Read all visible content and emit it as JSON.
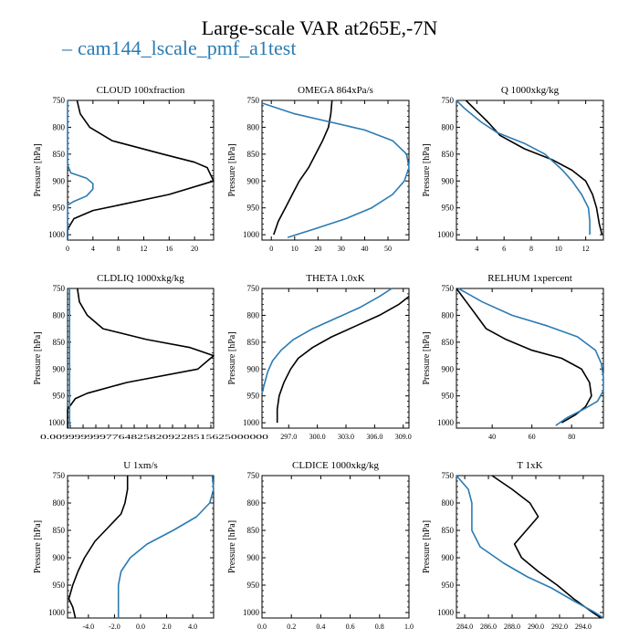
{
  "title": "Large-scale VAR at265E,-7N",
  "legend": {
    "label": "cam144_lscale_pmf_a1test",
    "dash": "–"
  },
  "colors": {
    "obs": "#000000",
    "model": "#2b7bb3"
  },
  "chart_data": [
    {
      "type": "line",
      "title": "CLOUD  100xfraction",
      "ylabel": "Pressure [hPa]",
      "xlim": [
        0,
        23
      ],
      "ylim": [
        1010,
        750
      ],
      "xticks": [
        0,
        4,
        8,
        12,
        16,
        20
      ],
      "xticklabels": [
        "0",
        "4",
        "8",
        "12",
        "16",
        "20"
      ],
      "yticks": [
        750,
        800,
        850,
        900,
        950,
        1000
      ],
      "series": [
        {
          "key": "obs",
          "points": [
            [
              1.5,
              750
            ],
            [
              2,
              775
            ],
            [
              3.5,
              800
            ],
            [
              7,
              825
            ],
            [
              15,
              850
            ],
            [
              20,
              865
            ],
            [
              22,
              875
            ],
            [
              23,
              900
            ],
            [
              16,
              925
            ],
            [
              8,
              945
            ],
            [
              4,
              955
            ],
            [
              1,
              970
            ],
            [
              0,
              990
            ],
            [
              0,
              1010
            ]
          ]
        },
        {
          "key": "model",
          "points": [
            [
              0,
              750
            ],
            [
              0,
              870
            ],
            [
              0.5,
              885
            ],
            [
              3,
              895
            ],
            [
              4,
              905
            ],
            [
              4,
              915
            ],
            [
              3,
              928
            ],
            [
              1,
              938
            ],
            [
              0,
              945
            ],
            [
              0,
              1010
            ]
          ]
        }
      ]
    },
    {
      "type": "line",
      "title": "OMEGA  864xPa/s",
      "ylabel": "Pressure [hPa]",
      "xlim": [
        -4,
        59
      ],
      "ylim": [
        1010,
        750
      ],
      "xticks": [
        0,
        10,
        20,
        30,
        40,
        50
      ],
      "xticklabels": [
        "0",
        "10",
        "20",
        "30",
        "40",
        "50"
      ],
      "yticks": [
        750,
        800,
        850,
        900,
        950,
        1000
      ],
      "series": [
        {
          "key": "obs",
          "points": [
            [
              26,
              750
            ],
            [
              25.5,
              775
            ],
            [
              24.5,
              800
            ],
            [
              22,
              825
            ],
            [
              19,
              850
            ],
            [
              16,
              875
            ],
            [
              12,
              900
            ],
            [
              9,
              925
            ],
            [
              6,
              950
            ],
            [
              3,
              975
            ],
            [
              1,
              1000
            ]
          ]
        },
        {
          "key": "model",
          "points": [
            [
              -4,
              755
            ],
            [
              10,
              775
            ],
            [
              25,
              790
            ],
            [
              40,
              805
            ],
            [
              52,
              825
            ],
            [
              58,
              850
            ],
            [
              59,
              875
            ],
            [
              57,
              900
            ],
            [
              52,
              925
            ],
            [
              43,
              950
            ],
            [
              32,
              970
            ],
            [
              18,
              990
            ],
            [
              7,
              1005
            ]
          ]
        }
      ]
    },
    {
      "type": "line",
      "title": "Q  1000xkg/kg",
      "ylabel": "Pressure [hPa]",
      "xlim": [
        2.5,
        13.3
      ],
      "ylim": [
        1010,
        750
      ],
      "xticks": [
        4,
        6,
        8,
        10,
        12
      ],
      "xticklabels": [
        "4",
        "6",
        "8",
        "10",
        "12"
      ],
      "yticks": [
        750,
        800,
        850,
        900,
        950,
        1000
      ],
      "series": [
        {
          "key": "obs",
          "points": [
            [
              3.2,
              750
            ],
            [
              4.0,
              770
            ],
            [
              4.8,
              790
            ],
            [
              5.7,
              815
            ],
            [
              7.5,
              840
            ],
            [
              9.5,
              860
            ],
            [
              11.0,
              880
            ],
            [
              12.0,
              900
            ],
            [
              12.5,
              925
            ],
            [
              12.8,
              950
            ],
            [
              13.0,
              980
            ],
            [
              13.2,
              1000
            ]
          ]
        },
        {
          "key": "model",
          "points": [
            [
              2.5,
              750
            ],
            [
              3.1,
              765
            ],
            [
              4.3,
              790
            ],
            [
              5.5,
              810
            ],
            [
              7.5,
              830
            ],
            [
              9.0,
              850
            ],
            [
              10.3,
              880
            ],
            [
              11.0,
              900
            ],
            [
              11.7,
              925
            ],
            [
              12.2,
              950
            ],
            [
              12.3,
              975
            ],
            [
              12.3,
              1000
            ]
          ]
        }
      ]
    },
    {
      "type": "line",
      "title": "CLDLIQ  1000xkg/kg",
      "ylabel": "Pressure [hPa]",
      "xlim": [
        0,
        0.037
      ],
      "ylim": [
        1010,
        750
      ],
      "xticklabels": [
        "0.00999999977648258209228515625000000"
      ],
      "yticks": [
        750,
        800,
        850,
        900,
        950,
        1000
      ],
      "series": [
        {
          "key": "obs",
          "points": [
            [
              0.0025,
              750
            ],
            [
              0.003,
              775
            ],
            [
              0.005,
              800
            ],
            [
              0.009,
              825
            ],
            [
              0.02,
              845
            ],
            [
              0.031,
              860
            ],
            [
              0.037,
              875
            ],
            [
              0.033,
              900
            ],
            [
              0.015,
              925
            ],
            [
              0.005,
              945
            ],
            [
              0.002,
              955
            ],
            [
              0,
              975
            ],
            [
              0,
              1010
            ]
          ]
        },
        {
          "key": "model",
          "points": [
            [
              0.0005,
              750
            ],
            [
              0.0005,
              1010
            ]
          ]
        }
      ]
    },
    {
      "type": "line",
      "title": "THETA  1.0xK",
      "ylabel": "Pressure [hPa]",
      "xlim": [
        294.2,
        309.6
      ],
      "ylim": [
        1010,
        750
      ],
      "xticks": [
        297.0,
        300.0,
        303.0,
        306.0,
        309.0
      ],
      "xticklabels": [
        "297.0",
        "300.0",
        "303.0",
        "306.0",
        "309.0"
      ],
      "yticks": [
        750,
        800,
        850,
        900,
        950,
        1000
      ],
      "series": [
        {
          "key": "obs",
          "points": [
            [
              309.6,
              765
            ],
            [
              308.5,
              780
            ],
            [
              306.5,
              800
            ],
            [
              304.0,
              820
            ],
            [
              301.5,
              840
            ],
            [
              299.5,
              860
            ],
            [
              298.0,
              880
            ],
            [
              297.2,
              900
            ],
            [
              296.5,
              925
            ],
            [
              296.0,
              950
            ],
            [
              295.8,
              975
            ],
            [
              295.8,
              1000
            ]
          ]
        },
        {
          "key": "model",
          "points": [
            [
              307.8,
              750
            ],
            [
              306.5,
              765
            ],
            [
              304.5,
              785
            ],
            [
              302.0,
              805
            ],
            [
              299.5,
              825
            ],
            [
              297.5,
              845
            ],
            [
              296.2,
              865
            ],
            [
              295.3,
              885
            ],
            [
              294.8,
              905
            ],
            [
              294.5,
              925
            ],
            [
              294.2,
              945
            ]
          ]
        }
      ]
    },
    {
      "type": "line",
      "title": "RELHUM  1xpercent",
      "ylabel": "Pressure [hPa]",
      "xlim": [
        22,
        96
      ],
      "ylim": [
        1010,
        750
      ],
      "xticks": [
        40,
        60,
        80
      ],
      "xticklabels": [
        "40",
        "60",
        "80"
      ],
      "yticks": [
        750,
        800,
        850,
        900,
        950,
        1000
      ],
      "series": [
        {
          "key": "obs",
          "points": [
            [
              22,
              750
            ],
            [
              27,
              775
            ],
            [
              32,
              800
            ],
            [
              37,
              825
            ],
            [
              47,
              845
            ],
            [
              60,
              865
            ],
            [
              75,
              880
            ],
            [
              85,
              900
            ],
            [
              89,
              925
            ],
            [
              90,
              950
            ],
            [
              87,
              970
            ],
            [
              82,
              985
            ],
            [
              75,
              1000
            ]
          ]
        },
        {
          "key": "model",
          "points": [
            [
              23,
              750
            ],
            [
              35,
              775
            ],
            [
              50,
              800
            ],
            [
              68,
              820
            ],
            [
              83,
              840
            ],
            [
              92,
              865
            ],
            [
              95,
              890
            ],
            [
              96,
              915
            ],
            [
              96,
              940
            ],
            [
              93,
              960
            ],
            [
              86,
              975
            ],
            [
              78,
              990
            ],
            [
              72,
              1005
            ]
          ]
        }
      ]
    },
    {
      "type": "line",
      "title": "U  1xm/s",
      "ylabel": "Pressure [hPa]",
      "xlim": [
        -5.6,
        5.6
      ],
      "ylim": [
        1010,
        750
      ],
      "xticks": [
        -4,
        -2,
        0,
        2,
        4
      ],
      "xticklabels": [
        "-4.0",
        "-2.0",
        "0.0",
        "2.0",
        "4.0"
      ],
      "yticks": [
        750,
        800,
        850,
        900,
        950,
        1000
      ],
      "series": [
        {
          "key": "obs",
          "points": [
            [
              -1.0,
              750
            ],
            [
              -1.0,
              775
            ],
            [
              -1.2,
              800
            ],
            [
              -1.5,
              820
            ],
            [
              -2.5,
              845
            ],
            [
              -3.5,
              870
            ],
            [
              -4.3,
              900
            ],
            [
              -4.8,
              925
            ],
            [
              -5.2,
              950
            ],
            [
              -5.5,
              975
            ],
            [
              -5.2,
              990
            ],
            [
              -5.0,
              1010
            ]
          ]
        },
        {
          "key": "model",
          "points": [
            [
              5.5,
              750
            ],
            [
              5.6,
              775
            ],
            [
              5.3,
              800
            ],
            [
              4.3,
              825
            ],
            [
              2.5,
              850
            ],
            [
              0.5,
              875
            ],
            [
              -0.8,
              900
            ],
            [
              -1.5,
              925
            ],
            [
              -1.7,
              950
            ],
            [
              -1.7,
              1010
            ]
          ]
        }
      ]
    },
    {
      "type": "line",
      "title": "CLDICE  1000xkg/kg",
      "ylabel": "Pressure [hPa]",
      "xlim": [
        0,
        1
      ],
      "ylim": [
        1010,
        750
      ],
      "xticks": [
        0,
        0.2,
        0.4,
        0.6,
        0.8,
        1.0
      ],
      "xticklabels": [
        "0.0",
        "0.2",
        "0.4",
        "0.6",
        "0.8",
        "1.0"
      ],
      "yticks": [
        750,
        800,
        850,
        900,
        950,
        1000
      ],
      "series": []
    },
    {
      "type": "line",
      "title": "T  1xK",
      "ylabel": "Pressure [hPa]",
      "xlim": [
        283.3,
        295.7
      ],
      "ylim": [
        1010,
        750
      ],
      "xticks": [
        284.0,
        286.0,
        288.0,
        290.0,
        292.0,
        294.0
      ],
      "xticklabels": [
        "284.0",
        "286.0",
        "288.0",
        "290.0",
        "292.0",
        "294.0"
      ],
      "yticks": [
        750,
        800,
        850,
        900,
        950,
        1000
      ],
      "series": [
        {
          "key": "obs",
          "points": [
            [
              286.3,
              750
            ],
            [
              288.0,
              775
            ],
            [
              289.5,
              800
            ],
            [
              290.2,
              825
            ],
            [
              289.2,
              850
            ],
            [
              288.2,
              875
            ],
            [
              288.8,
              900
            ],
            [
              290.2,
              925
            ],
            [
              291.8,
              950
            ],
            [
              293.2,
              975
            ],
            [
              294.8,
              1000
            ],
            [
              295.5,
              1010
            ]
          ]
        },
        {
          "key": "model",
          "points": [
            [
              283.3,
              750
            ],
            [
              284.3,
              775
            ],
            [
              284.6,
              800
            ],
            [
              284.6,
              850
            ],
            [
              285.3,
              880
            ],
            [
              287.3,
              910
            ],
            [
              289.3,
              935
            ],
            [
              291.3,
              955
            ],
            [
              293.3,
              980
            ],
            [
              295.0,
              1000
            ],
            [
              295.7,
              1010
            ]
          ]
        }
      ]
    }
  ]
}
